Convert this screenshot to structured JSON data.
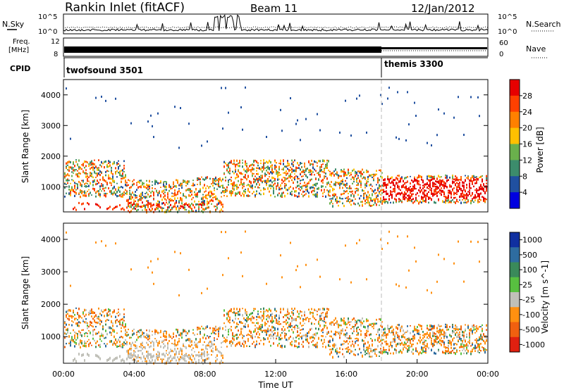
{
  "header": {
    "station": "Rankin Inlet (fitACF)",
    "beam": "Beam 11",
    "date": "12/Jan/2012"
  },
  "strips": {
    "nsky_label": "N.Sky",
    "nsky_ticks": [
      "10^5",
      "10^0"
    ],
    "nsearch_label": "N.Search",
    "nsearch_ticks": [
      "10^5",
      "10^0"
    ],
    "freq_label_1": "Freq.",
    "freq_label_2": "[MHz]",
    "freq_ticks": [
      "12",
      "8"
    ],
    "nave_label": "Nave",
    "nave_ticks": [
      "60",
      "0"
    ],
    "cpid_label": "CPID",
    "cpid_segments": [
      {
        "name": "twofsound 3501",
        "start_hour": 0.0
      },
      {
        "name": "themis 3300",
        "start_hour": 18.0
      }
    ]
  },
  "chart_data": [
    {
      "type": "heatmap",
      "title": "",
      "xlabel": "",
      "ylabel": "Slant Range [km]",
      "x_range_hours": [
        0,
        24
      ],
      "ylim": [
        180,
        4500
      ],
      "y_ticks": [
        "4000",
        "3000",
        "2000",
        "1000"
      ],
      "colorbar": {
        "label": "Power [dB]",
        "ticks": [
          "28",
          "24",
          "20",
          "16",
          "12",
          "8",
          "4"
        ],
        "colors": [
          "#e60000",
          "#ff4000",
          "#ff8000",
          "#ffc000",
          "#6ab04c",
          "#3c8c6c",
          "#2050a0",
          "#0000e0"
        ]
      }
    },
    {
      "type": "heatmap",
      "title": "",
      "xlabel": "Time UT",
      "ylabel": "Slant Range [km]",
      "x_range_hours": [
        0,
        24
      ],
      "x_ticks": [
        "00:00",
        "04:00",
        "08:00",
        "12:00",
        "16:00",
        "20:00",
        "00:00"
      ],
      "ylim": [
        180,
        4500
      ],
      "y_ticks": [
        "4000",
        "3000",
        "2000",
        "1000"
      ],
      "colorbar": {
        "label": "Velocity [m s^-1]",
        "ticks": [
          "1000",
          "500",
          "100",
          "25",
          "-25",
          "-100",
          "-500",
          "-1000"
        ],
        "colors": [
          "#1030a0",
          "#2e6ca0",
          "#3a8a5a",
          "#58c040",
          "#c0c0b8",
          "#ff9010",
          "#f06010",
          "#e02010"
        ]
      }
    }
  ]
}
